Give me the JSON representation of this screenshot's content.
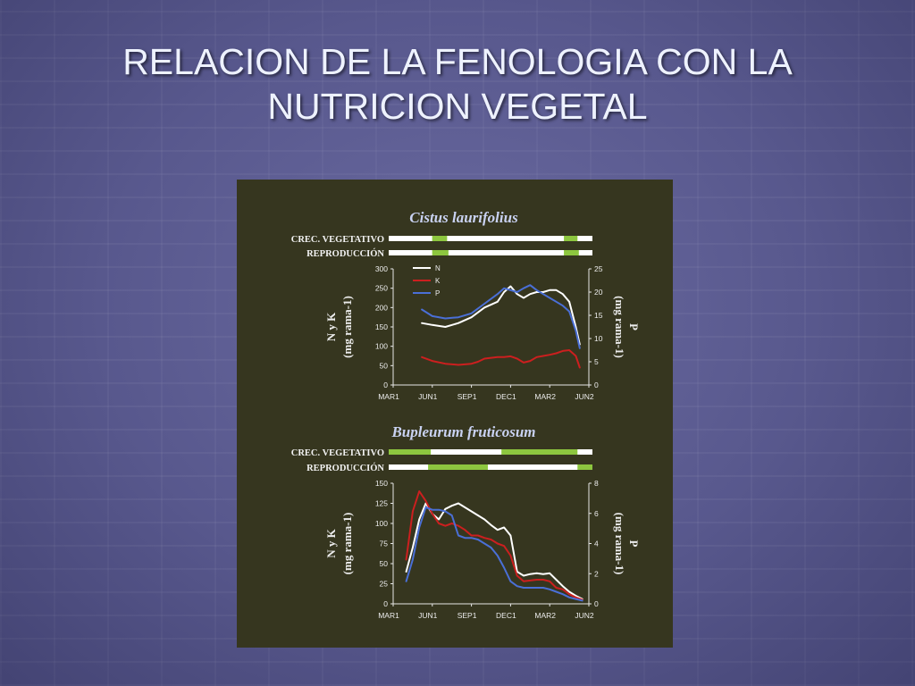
{
  "slide": {
    "title_line1": "RELACION DE LA FENOLOGIA CON LA",
    "title_line2": "NUTRICION VEGETAL"
  },
  "colors": {
    "N": "#ffffff",
    "K": "#cc1f1f",
    "P": "#4a6fd6",
    "phase_active": "#8dc63f",
    "phase_inactive": "#ffffff",
    "panel_bg": "#36361f"
  },
  "chart_data": [
    {
      "type": "line",
      "title": "Cistus laurifolius",
      "x_ticks": [
        "MAR1",
        "JUN1",
        "SEP1",
        "DEC1",
        "MAR2",
        "JUN2"
      ],
      "x_range": [
        0,
        15
      ],
      "phenology": [
        {
          "label": "CREC. VEGETATIVO",
          "active_periods": [
            [
              3.2,
              4.3
            ],
            [
              12.9,
              13.9
            ]
          ]
        },
        {
          "label": "REPRODUCCIÓN",
          "active_periods": [
            [
              3.2,
              4.4
            ],
            [
              12.9,
              14.0
            ]
          ]
        }
      ],
      "y_left": {
        "label": "N y K",
        "unit": "(mg rama-1)",
        "range": [
          0,
          300
        ],
        "ticks": [
          0,
          50,
          100,
          150,
          200,
          250,
          300
        ]
      },
      "y_right": {
        "label": "P",
        "unit": "(mg rama-1)",
        "range": [
          0,
          25
        ],
        "ticks": [
          0,
          5,
          10,
          15,
          20,
          25
        ]
      },
      "legend": [
        "N",
        "K",
        "P"
      ],
      "series": [
        {
          "name": "N",
          "axis": "left",
          "points": [
            [
              2.2,
              160
            ],
            [
              3,
              155
            ],
            [
              4,
              150
            ],
            [
              5,
              160
            ],
            [
              6,
              175
            ],
            [
              7,
              200
            ],
            [
              8,
              215
            ],
            [
              8.5,
              240
            ],
            [
              9,
              255
            ],
            [
              9.5,
              235
            ],
            [
              10,
              225
            ],
            [
              10.5,
              235
            ],
            [
              11,
              240
            ],
            [
              11.5,
              240
            ],
            [
              12,
              245
            ],
            [
              12.5,
              245
            ],
            [
              13,
              235
            ],
            [
              13.5,
              215
            ],
            [
              14,
              150
            ],
            [
              14.3,
              105
            ]
          ]
        },
        {
          "name": "K",
          "axis": "left",
          "points": [
            [
              2.2,
              72
            ],
            [
              3,
              62
            ],
            [
              4,
              55
            ],
            [
              5,
              52
            ],
            [
              6,
              55
            ],
            [
              6.5,
              60
            ],
            [
              7,
              68
            ],
            [
              8,
              72
            ],
            [
              8.5,
              72
            ],
            [
              9,
              74
            ],
            [
              9.5,
              68
            ],
            [
              10,
              58
            ],
            [
              10.5,
              62
            ],
            [
              11,
              72
            ],
            [
              11.5,
              75
            ],
            [
              12,
              78
            ],
            [
              12.5,
              82
            ],
            [
              13,
              88
            ],
            [
              13.5,
              90
            ],
            [
              14,
              75
            ],
            [
              14.3,
              45
            ]
          ]
        },
        {
          "name": "P",
          "axis": "left",
          "points": [
            [
              2.2,
              195
            ],
            [
              3,
              178
            ],
            [
              4,
              172
            ],
            [
              5,
              175
            ],
            [
              6,
              185
            ],
            [
              7,
              210
            ],
            [
              8,
              235
            ],
            [
              8.5,
              250
            ],
            [
              9,
              245
            ],
            [
              9.5,
              240
            ],
            [
              10,
              250
            ],
            [
              10.5,
              258
            ],
            [
              11,
              245
            ],
            [
              11.5,
              235
            ],
            [
              12,
              225
            ],
            [
              12.5,
              215
            ],
            [
              13,
              205
            ],
            [
              13.5,
              190
            ],
            [
              14,
              140
            ],
            [
              14.3,
              95
            ]
          ]
        }
      ]
    },
    {
      "type": "line",
      "title": "Bupleurum fruticosum",
      "x_ticks": [
        "MAR1",
        "JUN1",
        "SEP1",
        "DEC1",
        "MAR2",
        "JUN2"
      ],
      "x_range": [
        0,
        15
      ],
      "phenology": [
        {
          "label": "CREC. VEGETATIVO",
          "active_periods": [
            [
              0,
              3.1
            ],
            [
              8.3,
              13.9
            ]
          ]
        },
        {
          "label": "REPRODUCCIÓN",
          "active_periods": [
            [
              2.9,
              7.3
            ],
            [
              13.9,
              15
            ]
          ]
        }
      ],
      "y_left": {
        "label": "N y K",
        "unit": "(mg rama-1)",
        "range": [
          0,
          150
        ],
        "ticks": [
          0,
          25,
          50,
          75,
          100,
          125,
          150
        ]
      },
      "y_right": {
        "label": "P",
        "unit": "(mg rama-1)",
        "range": [
          0,
          8
        ],
        "ticks": [
          0,
          2,
          4,
          6,
          8
        ]
      },
      "series": [
        {
          "name": "N",
          "axis": "left",
          "points": [
            [
              1,
              40
            ],
            [
              1.5,
              70
            ],
            [
              2,
              105
            ],
            [
              2.5,
              125
            ],
            [
              3,
              112
            ],
            [
              3.5,
              105
            ],
            [
              4,
              118
            ],
            [
              4.5,
              122
            ],
            [
              5,
              125
            ],
            [
              5.5,
              120
            ],
            [
              6,
              115
            ],
            [
              6.5,
              110
            ],
            [
              7,
              105
            ],
            [
              7.5,
              98
            ],
            [
              8,
              92
            ],
            [
              8.5,
              95
            ],
            [
              9,
              85
            ],
            [
              9.5,
              40
            ],
            [
              10,
              35
            ],
            [
              10.5,
              37
            ],
            [
              11,
              38
            ],
            [
              11.5,
              37
            ],
            [
              12,
              38
            ],
            [
              12.5,
              30
            ],
            [
              13,
              22
            ],
            [
              13.5,
              15
            ],
            [
              14,
              10
            ],
            [
              14.5,
              6
            ]
          ]
        },
        {
          "name": "K",
          "axis": "left",
          "points": [
            [
              1,
              55
            ],
            [
              1.5,
              115
            ],
            [
              2,
              140
            ],
            [
              2.5,
              128
            ],
            [
              3,
              112
            ],
            [
              3.5,
              100
            ],
            [
              4,
              97
            ],
            [
              4.5,
              100
            ],
            [
              5,
              97
            ],
            [
              5.5,
              92
            ],
            [
              6,
              85
            ],
            [
              6.5,
              85
            ],
            [
              7,
              82
            ],
            [
              7.5,
              80
            ],
            [
              8,
              75
            ],
            [
              8.5,
              72
            ],
            [
              9,
              60
            ],
            [
              9.5,
              35
            ],
            [
              10,
              28
            ],
            [
              10.5,
              29
            ],
            [
              11,
              30
            ],
            [
              11.5,
              30
            ],
            [
              12,
              28
            ],
            [
              12.5,
              20
            ],
            [
              13,
              18
            ],
            [
              13.5,
              12
            ],
            [
              14,
              8
            ],
            [
              14.5,
              5
            ]
          ]
        },
        {
          "name": "P",
          "axis": "left",
          "points": [
            [
              1,
              28
            ],
            [
              1.5,
              55
            ],
            [
              2,
              95
            ],
            [
              2.5,
              120
            ],
            [
              3,
              117
            ],
            [
              3.5,
              117
            ],
            [
              4,
              115
            ],
            [
              4.5,
              110
            ],
            [
              5,
              85
            ],
            [
              5.5,
              82
            ],
            [
              6,
              82
            ],
            [
              6.5,
              80
            ],
            [
              7,
              75
            ],
            [
              7.5,
              70
            ],
            [
              8,
              60
            ],
            [
              8.5,
              45
            ],
            [
              9,
              28
            ],
            [
              9.5,
              22
            ],
            [
              10,
              20
            ],
            [
              10.5,
              20
            ],
            [
              11,
              20
            ],
            [
              11.5,
              20
            ],
            [
              12,
              18
            ],
            [
              12.5,
              15
            ],
            [
              13,
              12
            ],
            [
              13.5,
              8
            ],
            [
              14,
              6
            ],
            [
              14.5,
              4
            ]
          ]
        }
      ]
    }
  ]
}
